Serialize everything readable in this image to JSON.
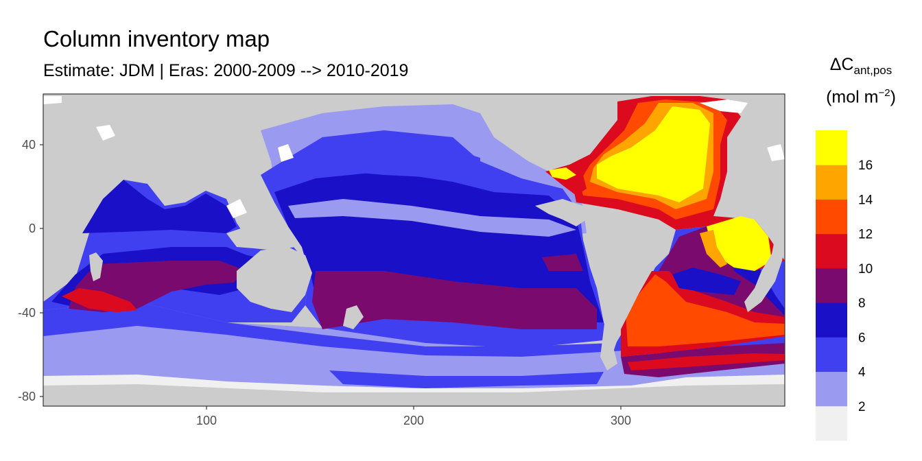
{
  "title": "Column inventory map",
  "subtitle": "Estimate: JDM  | Eras: 2000-2009 --> 2010-2019",
  "legend": {
    "title_main": "ΔC",
    "title_sub": "ant,pos",
    "unit_main": "mol m",
    "unit_sup": "−2",
    "bins": [
      {
        "color": "#f0f0f0"
      },
      {
        "color": "#9a9af0"
      },
      {
        "color": "#4040f0"
      },
      {
        "color": "#1a10c8"
      },
      {
        "color": "#7a0a6e"
      },
      {
        "color": "#dc0a1e"
      },
      {
        "color": "#ff4a00"
      },
      {
        "color": "#ffa500"
      },
      {
        "color": "#ffff00"
      }
    ],
    "break_labels": [
      "2",
      "4",
      "6",
      "8",
      "10",
      "12",
      "14",
      "16"
    ]
  },
  "axes": {
    "x_ticks": [
      "100",
      "200",
      "300"
    ],
    "y_ticks": [
      "40",
      "0",
      "-40",
      "-80"
    ]
  },
  "colors": {
    "land": "#cccccc",
    "ice": "#ffffff"
  }
}
